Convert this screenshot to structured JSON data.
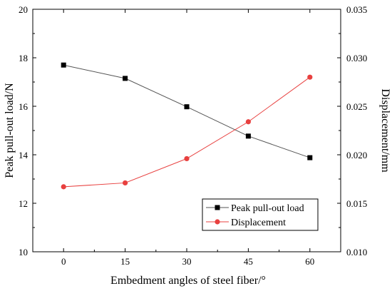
{
  "chart_data": {
    "type": "line",
    "xlabel": "Embedment angles of steel fiber/°",
    "ylabel_left": "Peak pull-out load/N",
    "ylabel_right": "Displacement/mm",
    "x": [
      0,
      15,
      30,
      45,
      60
    ],
    "xticks": [
      "0",
      "15",
      "30",
      "45",
      "60"
    ],
    "xlim": [
      -7.5,
      67.5
    ],
    "ylim_left": [
      10,
      20
    ],
    "yticks_left": [
      "10",
      "12",
      "14",
      "16",
      "18",
      "20"
    ],
    "ylim_right": [
      0.01,
      0.035
    ],
    "yticks_right": [
      "0.010",
      "0.015",
      "0.020",
      "0.025",
      "0.030",
      "0.035"
    ],
    "grid": false,
    "legend_position": "bottom-right",
    "series": [
      {
        "name": "Peak pull-out load",
        "axis": "left",
        "values": [
          17.7,
          17.15,
          15.98,
          14.77,
          13.88
        ],
        "color": "#000000",
        "line_color": "#555555",
        "marker": "square"
      },
      {
        "name": "Displacement",
        "axis": "right",
        "values": [
          0.0167,
          0.0171,
          0.0196,
          0.0234,
          0.028
        ],
        "color": "#e8403f",
        "line_color": "#e8403f",
        "marker": "circle"
      }
    ]
  }
}
